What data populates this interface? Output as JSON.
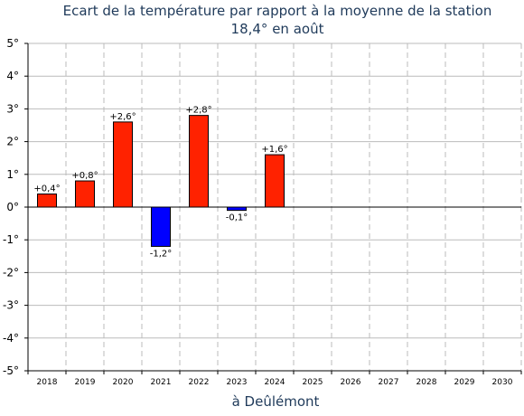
{
  "chart_data": {
    "type": "bar",
    "title": "Ecart de la température par rapport à la moyenne de la station",
    "subtitle": "18,4° en août",
    "xlabel": "à Deûlémont",
    "ylabel": "",
    "ylim": [
      -5,
      5
    ],
    "yticks": [
      "5°",
      "4°",
      "3°",
      "2°",
      "1°",
      "0°",
      "-1°",
      "-2°",
      "-3°",
      "-4°",
      "-5°"
    ],
    "categories": [
      "2018",
      "2019",
      "2020",
      "2021",
      "2022",
      "2023",
      "2024",
      "2025",
      "2026",
      "2027",
      "2028",
      "2029",
      "2030"
    ],
    "values": [
      0.4,
      0.8,
      2.6,
      -1.2,
      2.8,
      -0.1,
      1.6,
      null,
      null,
      null,
      null,
      null,
      null
    ],
    "data_labels": [
      "+0,4°",
      "+0,8°",
      "+2,6°",
      "-1,2°",
      "+2,8°",
      "-0,1°",
      "+1,6°",
      "",
      "",
      "",
      "",
      "",
      ""
    ],
    "grid": true,
    "colors": {
      "positive": "#ff2200",
      "negative": "#0000ff",
      "grid": "#bbbbbb",
      "title": "#1f3a5a"
    }
  }
}
